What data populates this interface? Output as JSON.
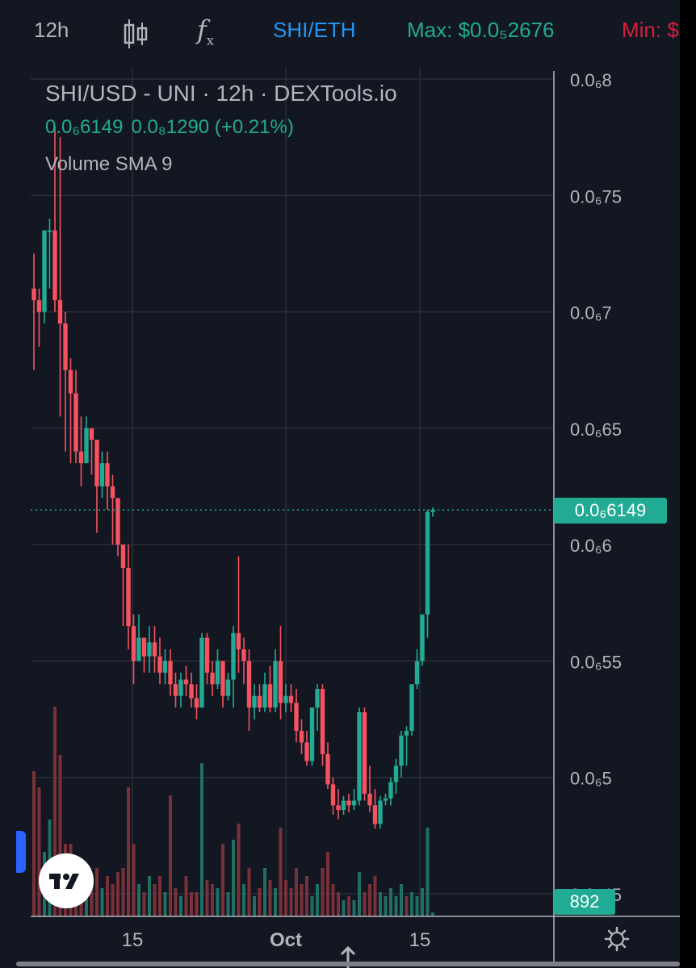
{
  "toolbar": {
    "interval": "12h",
    "candle_icon": "candlestick-icon",
    "indicator_label": "f",
    "indicator_sub": "x",
    "pair": "SHI/ETH",
    "max": "Max: $0.0₅2676",
    "min": "Min: $"
  },
  "legend": {
    "title": "SHI/USD - UNI · 12h · DEXTools.io",
    "last_price": "0.0₆6149",
    "change": "0.0₈1290 (+0.21%)",
    "volume_label": "Volume SMA 9"
  },
  "price_axis": {
    "labels": [
      "0.0₆8",
      "0.0₆75",
      "0.0₆7",
      "0.0₆65",
      "0.0₆6",
      "0.0₆55",
      "0.0₆5",
      "0.0₆45"
    ],
    "last_tag": "0.0₆6149",
    "volume_tag": "892"
  },
  "time_axis": {
    "labels": [
      "15",
      "Oct",
      "15"
    ]
  },
  "colors": {
    "up": "#22ab94",
    "down": "#f7525f",
    "bg": "#131722",
    "grid": "#2a2e39"
  },
  "chart_data": {
    "type": "candlestick",
    "unit": "price in units of 1e-7 USD",
    "candles": [
      [
        7.1,
        7.25,
        6.75,
        7.05
      ],
      [
        7.05,
        7.1,
        6.85,
        7.0
      ],
      [
        7.0,
        7.35,
        6.95,
        7.35
      ],
      [
        7.35,
        7.4,
        7.1,
        7.35
      ],
      [
        7.35,
        7.8,
        7.0,
        7.05
      ],
      [
        7.05,
        7.75,
        6.55,
        6.95
      ],
      [
        6.95,
        7.0,
        6.4,
        6.75
      ],
      [
        6.75,
        6.8,
        6.35,
        6.65
      ],
      [
        6.65,
        6.75,
        6.35,
        6.4
      ],
      [
        6.4,
        6.55,
        6.25,
        6.35
      ],
      [
        6.35,
        6.55,
        6.35,
        6.5
      ],
      [
        6.5,
        6.5,
        6.3,
        6.45
      ],
      [
        6.45,
        6.45,
        6.05,
        6.25
      ],
      [
        6.25,
        6.4,
        6.2,
        6.35
      ],
      [
        6.35,
        6.4,
        6.15,
        6.25
      ],
      [
        6.25,
        6.3,
        6.0,
        6.2
      ],
      [
        6.2,
        6.2,
        5.95,
        6.0
      ],
      [
        6.0,
        6.0,
        5.65,
        5.9
      ],
      [
        5.9,
        6.0,
        5.55,
        5.65
      ],
      [
        5.65,
        5.7,
        5.4,
        5.5
      ],
      [
        5.5,
        5.7,
        5.5,
        5.6
      ],
      [
        5.6,
        5.6,
        5.45,
        5.52
      ],
      [
        5.52,
        5.65,
        5.45,
        5.58
      ],
      [
        5.58,
        5.65,
        5.45,
        5.52
      ],
      [
        5.52,
        5.6,
        5.4,
        5.45
      ],
      [
        5.45,
        5.55,
        5.4,
        5.5
      ],
      [
        5.5,
        5.55,
        5.35,
        5.4
      ],
      [
        5.4,
        5.45,
        5.3,
        5.35
      ],
      [
        5.35,
        5.45,
        5.3,
        5.42
      ],
      [
        5.42,
        5.48,
        5.35,
        5.4
      ],
      [
        5.4,
        5.45,
        5.3,
        5.34
      ],
      [
        5.34,
        5.4,
        5.25,
        5.3
      ],
      [
        5.3,
        5.62,
        5.3,
        5.6
      ],
      [
        5.6,
        5.62,
        5.4,
        5.45
      ],
      [
        5.45,
        5.5,
        5.35,
        5.4
      ],
      [
        5.4,
        5.55,
        5.38,
        5.5
      ],
      [
        5.5,
        5.5,
        5.3,
        5.35
      ],
      [
        5.35,
        5.45,
        5.33,
        5.42
      ],
      [
        5.42,
        5.65,
        5.3,
        5.62
      ],
      [
        5.62,
        5.95,
        5.45,
        5.55
      ],
      [
        5.55,
        5.6,
        5.4,
        5.5
      ],
      [
        5.5,
        5.55,
        5.2,
        5.3
      ],
      [
        5.3,
        5.4,
        5.25,
        5.35
      ],
      [
        5.35,
        5.4,
        5.28,
        5.3
      ],
      [
        5.3,
        5.45,
        5.28,
        5.4
      ],
      [
        5.4,
        5.48,
        5.28,
        5.3
      ],
      [
        5.3,
        5.55,
        5.28,
        5.5
      ],
      [
        5.5,
        5.65,
        5.25,
        5.32
      ],
      [
        5.32,
        5.4,
        5.28,
        5.35
      ],
      [
        5.35,
        5.4,
        5.28,
        5.32
      ],
      [
        5.32,
        5.38,
        5.15,
        5.2
      ],
      [
        5.2,
        5.25,
        5.1,
        5.15
      ],
      [
        5.15,
        5.2,
        5.05,
        5.07
      ],
      [
        5.07,
        5.3,
        5.05,
        5.3
      ],
      [
        5.3,
        5.4,
        5.2,
        5.38
      ],
      [
        5.38,
        5.4,
        5.05,
        5.1
      ],
      [
        5.1,
        5.15,
        4.95,
        4.97
      ],
      [
        4.97,
        5.0,
        4.84,
        4.88
      ],
      [
        4.88,
        4.95,
        4.82,
        4.86
      ],
      [
        4.86,
        4.92,
        4.84,
        4.9
      ],
      [
        4.9,
        4.93,
        4.85,
        4.88
      ],
      [
        4.88,
        4.95,
        4.86,
        4.9
      ],
      [
        4.9,
        5.3,
        4.88,
        5.28
      ],
      [
        5.28,
        5.3,
        4.9,
        4.93
      ],
      [
        4.93,
        5.05,
        4.85,
        4.88
      ],
      [
        4.88,
        4.95,
        4.78,
        4.8
      ],
      [
        4.8,
        4.92,
        4.78,
        4.9
      ],
      [
        4.9,
        4.93,
        4.88,
        4.91
      ],
      [
        4.91,
        5.0,
        4.88,
        4.98
      ],
      [
        4.98,
        5.08,
        4.93,
        5.05
      ],
      [
        5.05,
        5.2,
        5.0,
        5.18
      ],
      [
        5.18,
        5.22,
        5.05,
        5.2
      ],
      [
        5.2,
        5.4,
        5.18,
        5.4
      ],
      [
        5.4,
        5.55,
        5.38,
        5.5
      ],
      [
        5.5,
        5.7,
        5.48,
        5.7
      ],
      [
        5.7,
        6.15,
        5.6,
        6.14
      ],
      [
        6.14,
        6.16,
        6.12,
        6.149
      ]
    ],
    "volumes": [
      [
        180,
        "d"
      ],
      [
        160,
        "d"
      ],
      [
        80,
        "u"
      ],
      [
        120,
        "u"
      ],
      [
        260,
        "d"
      ],
      [
        200,
        "d"
      ],
      [
        90,
        "d"
      ],
      [
        90,
        "d"
      ],
      [
        60,
        "d"
      ],
      [
        70,
        "d"
      ],
      [
        30,
        "u"
      ],
      [
        40,
        "d"
      ],
      [
        60,
        "d"
      ],
      [
        35,
        "u"
      ],
      [
        50,
        "d"
      ],
      [
        40,
        "d"
      ],
      [
        55,
        "d"
      ],
      [
        60,
        "d"
      ],
      [
        160,
        "d"
      ],
      [
        90,
        "d"
      ],
      [
        40,
        "u"
      ],
      [
        30,
        "d"
      ],
      [
        50,
        "u"
      ],
      [
        40,
        "d"
      ],
      [
        50,
        "d"
      ],
      [
        30,
        "u"
      ],
      [
        150,
        "d"
      ],
      [
        35,
        "d"
      ],
      [
        25,
        "u"
      ],
      [
        50,
        "d"
      ],
      [
        30,
        "d"
      ],
      [
        30,
        "d"
      ],
      [
        190,
        "u"
      ],
      [
        45,
        "d"
      ],
      [
        40,
        "d"
      ],
      [
        35,
        "u"
      ],
      [
        90,
        "d"
      ],
      [
        30,
        "u"
      ],
      [
        95,
        "u"
      ],
      [
        115,
        "d"
      ],
      [
        40,
        "u"
      ],
      [
        60,
        "d"
      ],
      [
        25,
        "u"
      ],
      [
        35,
        "d"
      ],
      [
        60,
        "u"
      ],
      [
        45,
        "d"
      ],
      [
        35,
        "u"
      ],
      [
        110,
        "d"
      ],
      [
        45,
        "d"
      ],
      [
        35,
        "d"
      ],
      [
        60,
        "d"
      ],
      [
        40,
        "d"
      ],
      [
        50,
        "d"
      ],
      [
        25,
        "u"
      ],
      [
        40,
        "u"
      ],
      [
        60,
        "d"
      ],
      [
        80,
        "d"
      ],
      [
        40,
        "d"
      ],
      [
        30,
        "d"
      ],
      [
        20,
        "u"
      ],
      [
        25,
        "d"
      ],
      [
        20,
        "u"
      ],
      [
        55,
        "u"
      ],
      [
        30,
        "d"
      ],
      [
        40,
        "d"
      ],
      [
        50,
        "d"
      ],
      [
        30,
        "u"
      ],
      [
        25,
        "u"
      ],
      [
        35,
        "u"
      ],
      [
        25,
        "u"
      ],
      [
        40,
        "u"
      ],
      [
        25,
        "d"
      ],
      [
        30,
        "u"
      ],
      [
        25,
        "u"
      ],
      [
        35,
        "u"
      ],
      [
        110,
        "u"
      ],
      [
        5,
        "u"
      ]
    ]
  }
}
